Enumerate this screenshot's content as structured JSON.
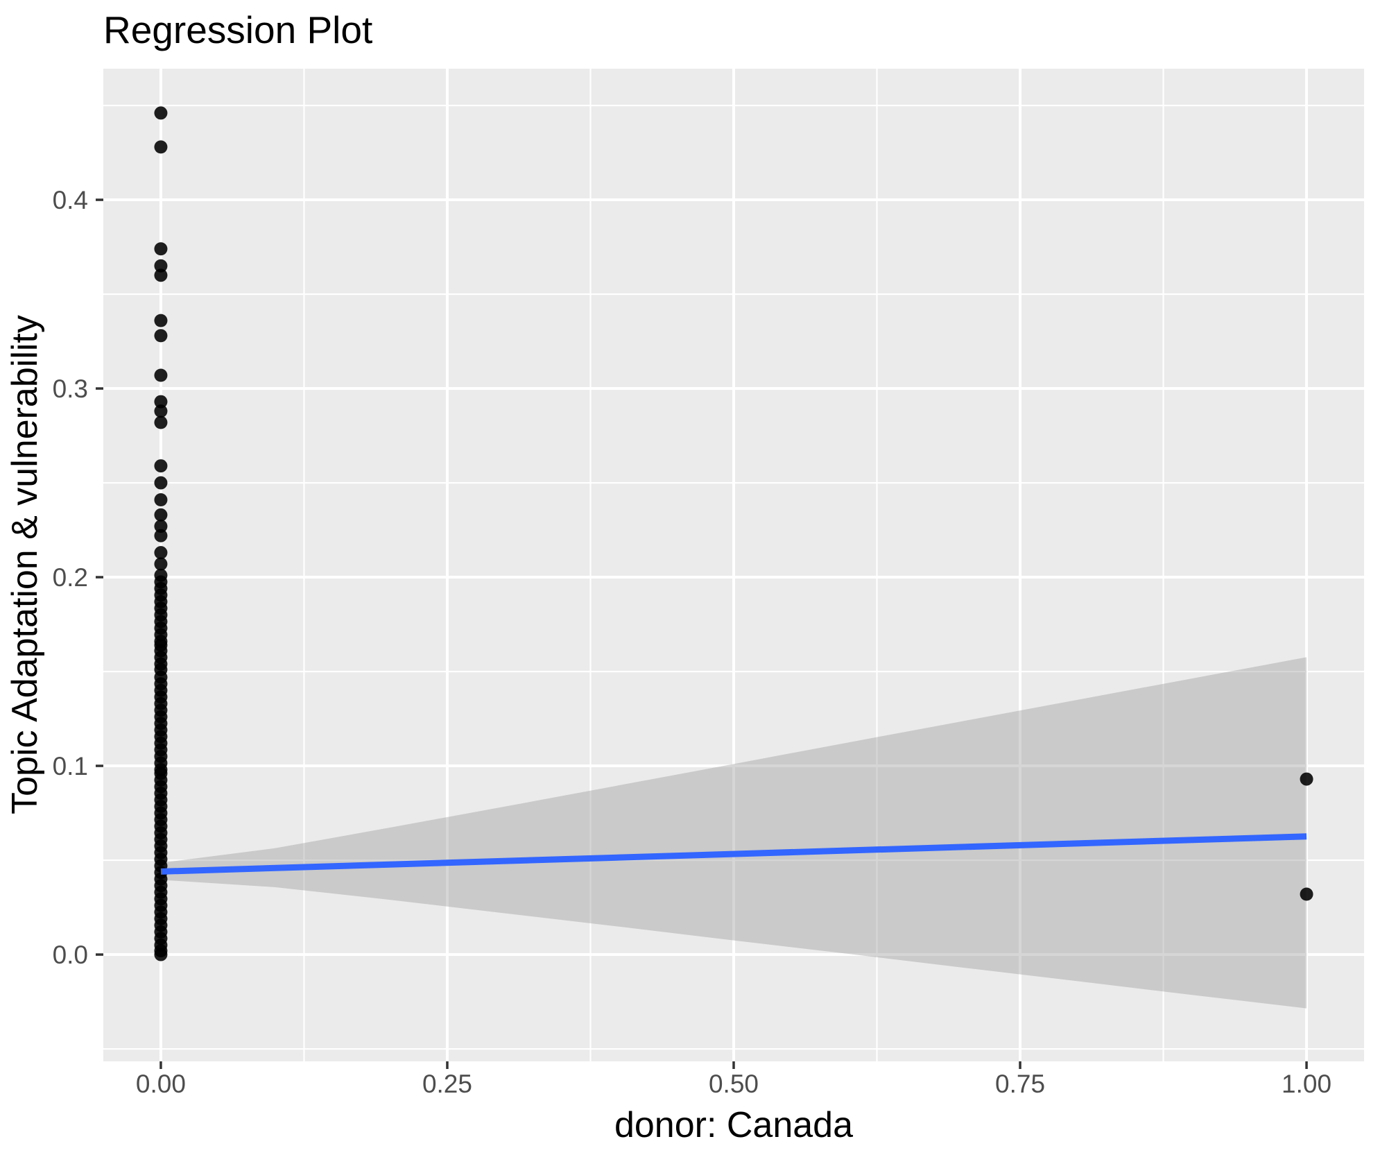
{
  "title": "Regression Plot",
  "chart_data": {
    "type": "scatter",
    "title": "Regression Plot",
    "xlabel": "donor: Canada",
    "ylabel": "Topic Adaptation & vulnerability",
    "xlim": [
      -0.0502,
      1.0502
    ],
    "ylim": [
      -0.0566,
      0.4695
    ],
    "x_ticks": [
      0,
      0.25,
      0.5,
      0.75,
      1
    ],
    "x_tick_labels": [
      "0.00",
      "0.25",
      "0.50",
      "0.75",
      "1.00"
    ],
    "y_ticks": [
      0,
      0.1,
      0.2,
      0.3,
      0.4
    ],
    "y_tick_labels": [
      "0.0",
      "0.1",
      "0.2",
      "0.3",
      "0.4"
    ],
    "x_minor_ticks": [
      0.125,
      0.375,
      0.625,
      0.875
    ],
    "y_minor_ticks": [
      -0.05,
      0.05,
      0.15,
      0.25,
      0.35,
      0.45
    ],
    "grid": true,
    "legend": false,
    "series": [
      {
        "name": "observations at donor=0",
        "x_value": 0,
        "y_values": [
          0.446,
          0.428,
          0.374,
          0.365,
          0.36,
          0.336,
          0.328,
          0.307,
          0.293,
          0.288,
          0.282,
          0.259,
          0.25,
          0.241,
          0.233,
          0.227,
          0.222,
          0.213,
          0.207,
          0.201,
          0.1975,
          0.194,
          0.1905,
          0.187,
          0.1835,
          0.18,
          0.1765,
          0.173,
          0.1695,
          0.166,
          0.164,
          0.161,
          0.1575,
          0.154,
          0.151,
          0.147,
          0.1435,
          0.14,
          0.1365,
          0.133,
          0.1295,
          0.126,
          0.1225,
          0.119,
          0.1155,
          0.112,
          0.1085,
          0.105,
          0.1015,
          0.098,
          0.096,
          0.0925,
          0.089,
          0.0855,
          0.082,
          0.0785,
          0.075,
          0.0715,
          0.068,
          0.0645,
          0.061,
          0.0575,
          0.054,
          0.0505,
          0.047,
          0.0435,
          0.04,
          0.0365,
          0.033,
          0.0295,
          0.026,
          0.0225,
          0.019,
          0.0155,
          0.012,
          0.0085,
          0.005,
          0.002,
          0.0
        ]
      },
      {
        "name": "observations at donor=1",
        "x_value": 1,
        "y_values": [
          0.093,
          0.032
        ]
      }
    ],
    "regression_line": {
      "x": [
        0,
        1
      ],
      "y": [
        0.044,
        0.0626
      ]
    },
    "ci_ribbon": {
      "x": [
        0.0,
        0.1,
        0.2,
        0.3,
        0.4,
        0.5,
        0.6,
        0.7,
        0.8,
        0.9,
        1.0
      ],
      "upper": [
        0.0486,
        0.0564,
        0.0673,
        0.0784,
        0.0897,
        0.101,
        0.1124,
        0.1237,
        0.135,
        0.1463,
        0.1576
      ],
      "lower": [
        0.0396,
        0.0357,
        0.029,
        0.0219,
        0.0148,
        0.0075,
        0.0004,
        -0.0069,
        -0.0141,
        -0.0214,
        -0.0285
      ]
    },
    "colors": {
      "panel_background": "#EBEBEB",
      "grid_line": "#FFFFFF",
      "point": "#000000",
      "regression_line": "#3366FF",
      "ribbon_fill": "#999999",
      "ribbon_alpha": 0.4,
      "tick_label": "#4D4D4D",
      "tick_mark": "#333333",
      "text": "#000000"
    }
  }
}
